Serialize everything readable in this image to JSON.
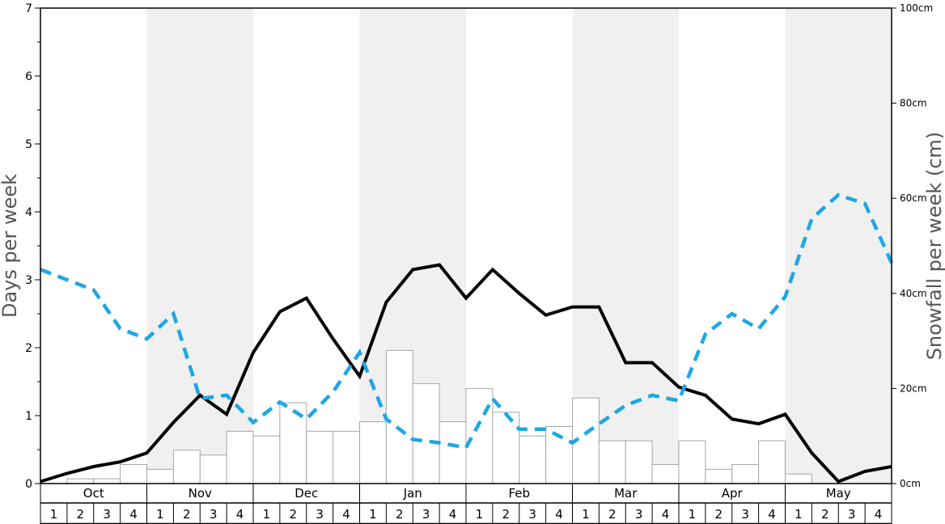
{
  "chart_data": {
    "type": "bar",
    "ylabel_left": "Days per week",
    "ylabel_right": "Snowfall per week (cm)",
    "ylim_left": [
      0,
      7
    ],
    "ylim_right": [
      0,
      100
    ],
    "left_ticks": [
      "0",
      "1",
      "2",
      "3",
      "4",
      "5",
      "6",
      "7"
    ],
    "right_ticks": [
      "0cm",
      "20cm",
      "40cm",
      "60cm",
      "80cm",
      "100cm"
    ],
    "months": [
      "Oct",
      "Nov",
      "Dec",
      "Jan",
      "Feb",
      "Mar",
      "Apr",
      "May"
    ],
    "weeks": [
      "1",
      "2",
      "3",
      "4"
    ],
    "shaded_months": [
      "Nov",
      "Jan",
      "Mar",
      "May"
    ],
    "series": [
      {
        "kind": "bar",
        "axis": "right",
        "values": [
          0,
          1,
          1,
          4,
          3,
          7,
          6,
          11,
          10,
          17,
          11,
          11,
          13,
          28,
          21,
          13,
          20,
          15,
          10,
          12,
          18,
          9,
          9,
          4,
          9,
          3,
          4,
          9,
          2,
          0,
          0,
          0
        ]
      },
      {
        "kind": "line",
        "axis": "left",
        "style": "solid",
        "values": [
          0.03,
          0.15,
          0.25,
          0.32,
          0.45,
          0.9,
          1.3,
          1.02,
          1.93,
          2.53,
          2.73,
          2.13,
          1.58,
          2.67,
          3.15,
          3.22,
          2.73,
          3.15,
          2.8,
          2.48,
          2.6,
          2.6,
          1.78,
          1.78,
          1.42,
          1.3,
          0.95,
          0.88,
          1.02,
          0.45,
          0.03,
          0.18,
          0.25
        ]
      },
      {
        "kind": "line",
        "axis": "left",
        "style": "dashed",
        "values": [
          3.15,
          3.0,
          2.85,
          2.28,
          2.13,
          2.5,
          1.25,
          1.3,
          0.9,
          1.2,
          0.95,
          1.35,
          1.93,
          0.95,
          0.65,
          0.6,
          0.53,
          1.25,
          0.8,
          0.8,
          0.6,
          0.88,
          1.15,
          1.3,
          1.22,
          2.2,
          2.5,
          2.28,
          2.75,
          3.9,
          4.25,
          4.12,
          3.25
        ]
      }
    ],
    "colors": {
      "line_solid": "#000000",
      "line_dashed": "#1ea7e6",
      "bar_fill": "#ffffff",
      "bar_stroke": "#a6a6a6",
      "shade": "#f0f0f0",
      "axis_title": "#555555"
    }
  }
}
